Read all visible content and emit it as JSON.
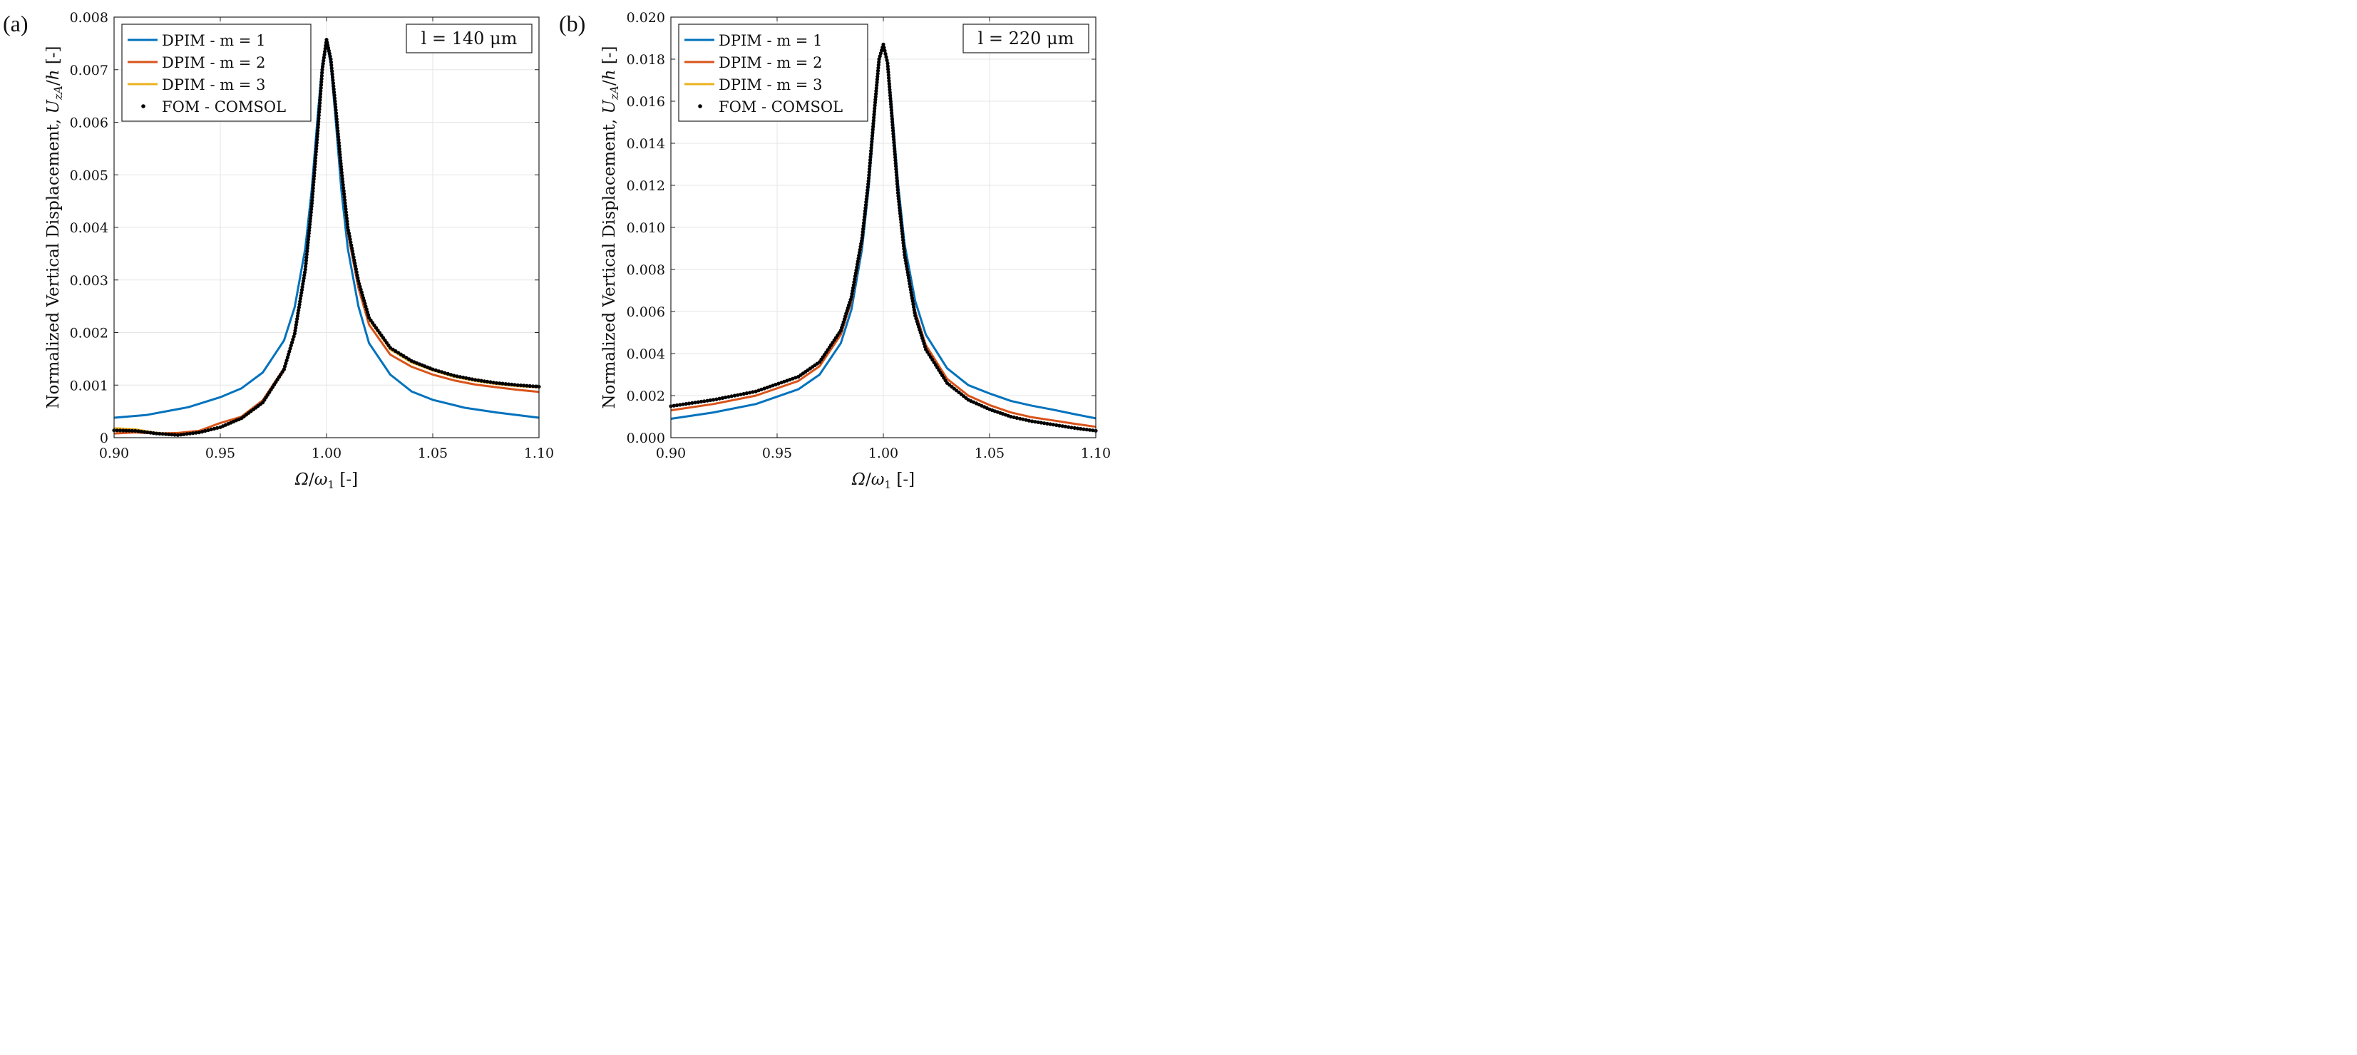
{
  "chart_data": [
    {
      "type": "line",
      "panel_label": "(a)",
      "annotation": "l = 140 μm",
      "xlabel": "Ω/ω₁ [-]",
      "ylabel": "Normalized Vertical Displacement, U_zA/h [-]",
      "xlim": [
        0.9,
        1.1
      ],
      "ylim": [
        0,
        0.008
      ],
      "xticks": [
        0.9,
        0.95,
        1.0,
        1.05,
        1.1
      ],
      "xtick_labels": [
        "0.90",
        "0.95",
        "1.00",
        "1.05",
        "1.10"
      ],
      "yticks": [
        0,
        0.001,
        0.002,
        0.003,
        0.004,
        0.005,
        0.006,
        0.007,
        0.008
      ],
      "ytick_labels": [
        "0",
        "0.001",
        "0.002",
        "0.003",
        "0.004",
        "0.005",
        "0.006",
        "0.007",
        "0.008"
      ],
      "grid": true,
      "legend_position": "top-left",
      "series": [
        {
          "name": "DPIM - m = 1",
          "style": "line",
          "color": "#0072BD",
          "x": [
            0.9,
            0.915,
            0.935,
            0.95,
            0.96,
            0.97,
            0.98,
            0.985,
            0.99,
            0.993,
            0.996,
            0.998,
            1.0,
            1.002,
            1.004,
            1.007,
            1.01,
            1.015,
            1.02,
            1.03,
            1.04,
            1.05,
            1.065,
            1.08,
            1.1
          ],
          "y": [
            0.00038,
            0.00043,
            0.00058,
            0.00077,
            0.00094,
            0.00124,
            0.00185,
            0.00248,
            0.0036,
            0.0047,
            0.0062,
            0.0071,
            0.00755,
            0.0071,
            0.0062,
            0.0047,
            0.0036,
            0.0025,
            0.0018,
            0.0012,
            0.00088,
            0.00072,
            0.00057,
            0.00048,
            0.00038
          ]
        },
        {
          "name": "DPIM - m = 2",
          "style": "line",
          "color": "#D95319",
          "x": [
            0.9,
            0.91,
            0.92,
            0.93,
            0.94,
            0.95,
            0.96,
            0.97,
            0.98,
            0.985,
            0.99,
            0.993,
            0.996,
            0.998,
            1.0,
            1.002,
            1.004,
            1.007,
            1.01,
            1.015,
            1.02,
            1.03,
            1.04,
            1.05,
            1.06,
            1.07,
            1.08,
            1.09,
            1.1
          ],
          "y": [
            8e-05,
            0.0001,
            8e-05,
            9e-05,
            0.00013,
            0.00028,
            0.0004,
            0.00071,
            0.00132,
            0.002,
            0.0032,
            0.0044,
            0.0059,
            0.007,
            0.00757,
            0.0072,
            0.0064,
            0.005,
            0.0039,
            0.00285,
            0.00215,
            0.00158,
            0.00135,
            0.0012,
            0.00109,
            0.00101,
            0.00096,
            0.00091,
            0.00087
          ]
        },
        {
          "name": "DPIM - m = 3",
          "style": "line",
          "color": "#EDB120",
          "x": [
            0.9,
            0.91,
            0.92,
            0.93,
            0.94,
            0.95,
            0.96,
            0.97,
            0.98,
            0.985,
            0.99,
            0.993,
            0.996,
            0.998,
            1.0,
            1.002,
            1.004,
            1.007,
            1.01,
            1.015,
            1.02,
            1.03,
            1.04,
            1.05,
            1.06,
            1.07,
            1.08,
            1.09,
            1.1
          ],
          "y": [
            0.00018,
            0.00016,
            9e-05,
            5e-05,
            0.0001,
            0.00019,
            0.00036,
            0.00066,
            0.00128,
            0.00196,
            0.0032,
            0.0044,
            0.0059,
            0.007,
            0.00757,
            0.0072,
            0.0064,
            0.0051,
            0.004,
            0.00295,
            0.00225,
            0.00168,
            0.00143,
            0.00128,
            0.00116,
            0.00108,
            0.00102,
            0.00098,
            0.00096
          ]
        },
        {
          "name": "FOM - COMSOL",
          "style": "dots",
          "color": "#000000",
          "x": [
            0.9,
            0.91,
            0.92,
            0.93,
            0.94,
            0.95,
            0.96,
            0.97,
            0.98,
            0.985,
            0.99,
            0.993,
            0.996,
            0.998,
            1.0,
            1.002,
            1.004,
            1.007,
            1.01,
            1.015,
            1.02,
            1.03,
            1.04,
            1.05,
            1.06,
            1.07,
            1.08,
            1.09,
            1.1
          ],
          "y": [
            0.00014,
            0.00013,
            8e-05,
            5e-05,
            0.0001,
            0.0002,
            0.00037,
            0.00067,
            0.0013,
            0.00198,
            0.0032,
            0.0044,
            0.0059,
            0.007,
            0.00757,
            0.0072,
            0.0064,
            0.0051,
            0.004,
            0.00298,
            0.00228,
            0.00171,
            0.00146,
            0.0013,
            0.00118,
            0.0011,
            0.00104,
            0.001,
            0.00097
          ]
        }
      ]
    },
    {
      "type": "line",
      "panel_label": "(b)",
      "annotation": "l = 220 μm",
      "xlabel": "Ω/ω₁ [-]",
      "ylabel": "Normalized Vertical Displacement, U_zA/h [-]",
      "xlim": [
        0.9,
        1.1
      ],
      "ylim": [
        0,
        0.02
      ],
      "xticks": [
        0.9,
        0.95,
        1.0,
        1.05,
        1.1
      ],
      "xtick_labels": [
        "0.90",
        "0.95",
        "1.00",
        "1.05",
        "1.10"
      ],
      "yticks": [
        0,
        0.002,
        0.004,
        0.006,
        0.008,
        0.01,
        0.012,
        0.014,
        0.016,
        0.018,
        0.02
      ],
      "ytick_labels": [
        "0.000",
        "0.002",
        "0.004",
        "0.006",
        "0.008",
        "0.010",
        "0.012",
        "0.014",
        "0.016",
        "0.018",
        "0.020"
      ],
      "grid": true,
      "legend_position": "top-left",
      "series": [
        {
          "name": "DPIM - m = 1",
          "style": "line",
          "color": "#0072BD",
          "x": [
            0.9,
            0.92,
            0.94,
            0.96,
            0.97,
            0.98,
            0.985,
            0.99,
            0.993,
            0.996,
            0.998,
            1.0,
            1.002,
            1.004,
            1.007,
            1.01,
            1.015,
            1.02,
            1.03,
            1.04,
            1.05,
            1.06,
            1.07,
            1.08,
            1.09,
            1.1
          ],
          "y": [
            0.0009,
            0.0012,
            0.0016,
            0.0023,
            0.003,
            0.0045,
            0.0061,
            0.009,
            0.0118,
            0.0155,
            0.0179,
            0.0187,
            0.0179,
            0.0157,
            0.012,
            0.0092,
            0.0065,
            0.0049,
            0.0033,
            0.0025,
            0.0021,
            0.00175,
            0.00152,
            0.00133,
            0.00112,
            0.00092
          ]
        },
        {
          "name": "DPIM - m = 2",
          "style": "line",
          "color": "#D95319",
          "x": [
            0.9,
            0.92,
            0.94,
            0.96,
            0.97,
            0.98,
            0.985,
            0.99,
            0.993,
            0.996,
            0.998,
            1.0,
            1.002,
            1.004,
            1.007,
            1.01,
            1.015,
            1.02,
            1.03,
            1.04,
            1.05,
            1.06,
            1.07,
            1.08,
            1.09,
            1.1
          ],
          "y": [
            0.0013,
            0.0016,
            0.002,
            0.0027,
            0.0034,
            0.0049,
            0.0065,
            0.0093,
            0.0121,
            0.0157,
            0.018,
            0.0187,
            0.0178,
            0.0154,
            0.0116,
            0.0088,
            0.006,
            0.0044,
            0.0028,
            0.002,
            0.00155,
            0.0012,
            0.00097,
            0.00082,
            0.00066,
            0.00052
          ]
        },
        {
          "name": "DPIM - m = 3",
          "style": "line",
          "color": "#EDB120",
          "x": [
            0.9,
            0.92,
            0.94,
            0.96,
            0.97,
            0.98,
            0.985,
            0.99,
            0.993,
            0.996,
            0.998,
            1.0,
            1.002,
            1.004,
            1.007,
            1.01,
            1.015,
            1.02,
            1.03,
            1.04,
            1.05,
            1.06,
            1.07,
            1.08,
            1.09,
            1.1
          ],
          "y": [
            0.0015,
            0.0018,
            0.0022,
            0.0029,
            0.0036,
            0.0051,
            0.0067,
            0.0095,
            0.0122,
            0.0158,
            0.018,
            0.0187,
            0.0178,
            0.0153,
            0.0115,
            0.0087,
            0.0058,
            0.0042,
            0.0026,
            0.0018,
            0.00135,
            0.001,
            0.00078,
            0.00062,
            0.00046,
            0.00033
          ]
        },
        {
          "name": "FOM - COMSOL",
          "style": "dots",
          "color": "#000000",
          "x": [
            0.9,
            0.92,
            0.94,
            0.96,
            0.97,
            0.98,
            0.985,
            0.99,
            0.993,
            0.996,
            0.998,
            1.0,
            1.002,
            1.004,
            1.007,
            1.01,
            1.015,
            1.02,
            1.03,
            1.04,
            1.05,
            1.06,
            1.07,
            1.08,
            1.09,
            1.1
          ],
          "y": [
            0.0015,
            0.0018,
            0.0022,
            0.0029,
            0.0036,
            0.0051,
            0.0067,
            0.0095,
            0.0122,
            0.0158,
            0.018,
            0.0187,
            0.0178,
            0.0153,
            0.0115,
            0.0087,
            0.0058,
            0.0042,
            0.0026,
            0.0018,
            0.00135,
            0.001,
            0.00078,
            0.00062,
            0.00046,
            0.00033
          ]
        }
      ]
    }
  ]
}
